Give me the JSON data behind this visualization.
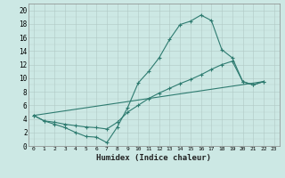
{
  "xlabel": "Humidex (Indice chaleur)",
  "background_color": "#cce8e4",
  "grid_color": "#b0c8c4",
  "line_color": "#2e7b70",
  "xlim": [
    -0.5,
    23.5
  ],
  "ylim": [
    0,
    21
  ],
  "xticks": [
    0,
    1,
    2,
    3,
    4,
    5,
    6,
    7,
    8,
    9,
    10,
    11,
    12,
    13,
    14,
    15,
    16,
    17,
    18,
    19,
    20,
    21,
    22,
    23
  ],
  "yticks": [
    0,
    2,
    4,
    6,
    8,
    10,
    12,
    14,
    16,
    18,
    20
  ],
  "line1_x": [
    0,
    1,
    2,
    3,
    4,
    5,
    6,
    7,
    8,
    9,
    10,
    11,
    12,
    13,
    14,
    15,
    16,
    17,
    18,
    19,
    20,
    21,
    22
  ],
  "line1_y": [
    4.5,
    3.7,
    3.2,
    2.7,
    2.0,
    1.4,
    1.3,
    0.5,
    2.8,
    5.7,
    9.3,
    11.0,
    13.0,
    15.7,
    17.9,
    18.4,
    19.3,
    18.5,
    14.2,
    13.0,
    9.5,
    9.0,
    9.5
  ],
  "line2_x": [
    0,
    1,
    2,
    3,
    4,
    5,
    6,
    7,
    8,
    9,
    10,
    11,
    12,
    13,
    14,
    15,
    16,
    17,
    18,
    19,
    20,
    21,
    22
  ],
  "line2_y": [
    4.5,
    3.7,
    3.5,
    3.2,
    3.0,
    2.8,
    2.7,
    2.5,
    3.5,
    5.0,
    6.0,
    7.0,
    7.8,
    8.5,
    9.2,
    9.8,
    10.5,
    11.3,
    12.0,
    12.5,
    9.5,
    9.0,
    9.5
  ],
  "line3_x": [
    0,
    22
  ],
  "line3_y": [
    4.5,
    9.5
  ]
}
